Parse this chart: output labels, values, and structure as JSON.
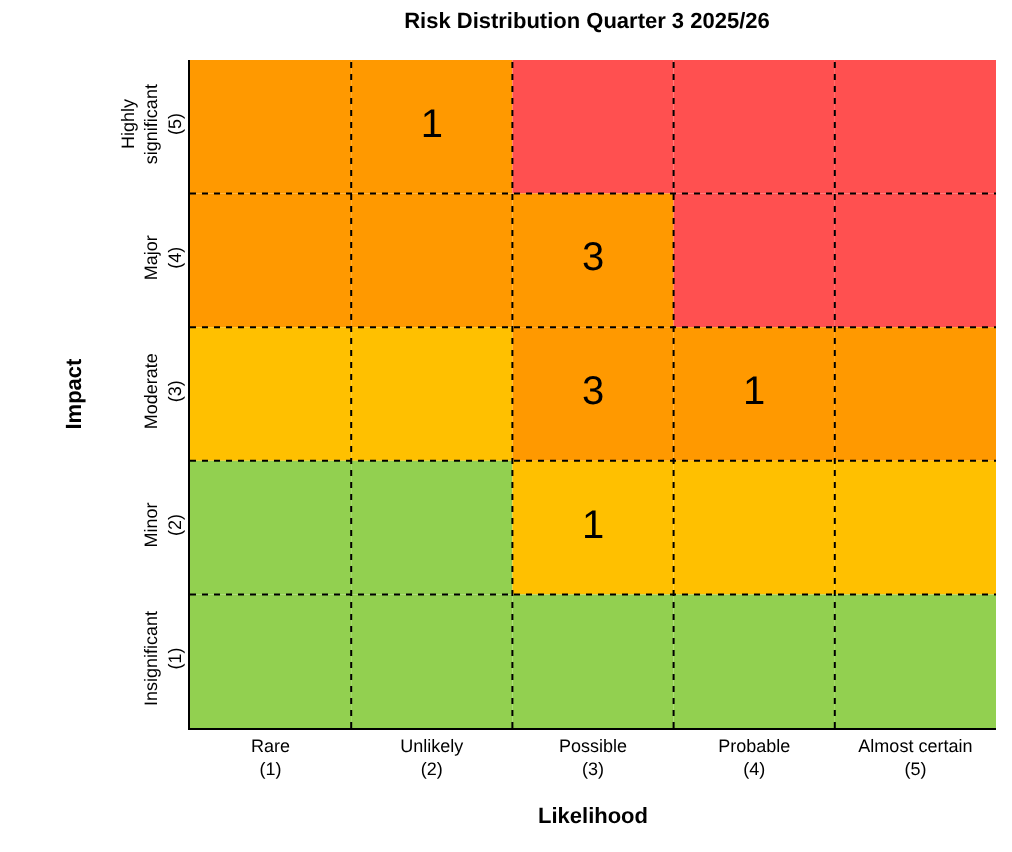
{
  "chart_data": {
    "type": "heatmap",
    "title": "Risk Distribution Quarter 3 2025/26",
    "xlabel": "Likelihood",
    "ylabel": "Impact",
    "categories": [
      "Rare\n(1)",
      "Unlikely\n(2)",
      "Possible\n(3)",
      "Probable\n(4)",
      "Almost certain\n(5)"
    ],
    "y_categories": [
      "Highly\nsignificant\n(5)",
      "Major\n(4)",
      "Moderate\n(3)",
      "Minor\n(2)",
      "Insignificant\n(1)"
    ],
    "cells": [
      [
        null,
        1,
        null,
        null,
        null
      ],
      [
        null,
        null,
        3,
        null,
        null
      ],
      [
        null,
        null,
        3,
        1,
        null
      ],
      [
        null,
        null,
        1,
        null,
        null
      ],
      [
        null,
        null,
        null,
        null,
        null
      ]
    ],
    "colors": [
      [
        "#ff9900",
        "#ff9900",
        "#ff5050",
        "#ff5050",
        "#ff5050"
      ],
      [
        "#ff9900",
        "#ff9900",
        "#ff9900",
        "#ff5050",
        "#ff5050"
      ],
      [
        "#ffc000",
        "#ffc000",
        "#ff9900",
        "#ff9900",
        "#ff9900"
      ],
      [
        "#92d050",
        "#92d050",
        "#ffc000",
        "#ffc000",
        "#ffc000"
      ],
      [
        "#92d050",
        "#92d050",
        "#92d050",
        "#92d050",
        "#92d050"
      ]
    ],
    "data_labels": true,
    "grid": true
  }
}
